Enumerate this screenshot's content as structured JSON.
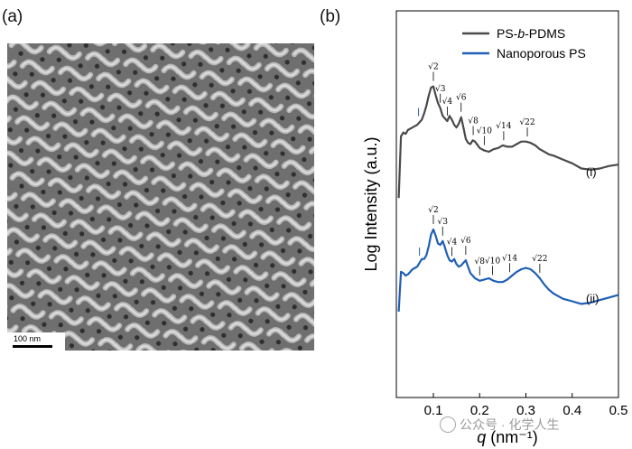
{
  "panels": {
    "a_label": "(a)",
    "b_label": "(b)"
  },
  "micrograph": {
    "scale_bar_label": "100 nm"
  },
  "chart_data": {
    "type": "line",
    "xlabel_symbol": "q",
    "xlabel_unit": "(nm⁻¹)",
    "ylabel": "Log Intensity (a.u.)",
    "xlim": [
      0.02,
      0.5
    ],
    "xticks": [
      "0.1",
      "0.2",
      "0.3",
      "0.4",
      "0.5"
    ],
    "xtick_values": [
      0.1,
      0.2,
      0.3,
      0.4,
      0.5
    ],
    "y_ticks_labeled": false,
    "legend_position": "top-right",
    "series": [
      {
        "name": "PS-b-PDMS",
        "label_plain": "PS-",
        "label_italic": "b",
        "label_rest": "-PDMS",
        "curve_tag": "(i)",
        "color": "#4a4a4a",
        "x": [
          0.025,
          0.03,
          0.035,
          0.04,
          0.045,
          0.05,
          0.055,
          0.06,
          0.065,
          0.07,
          0.075,
          0.08,
          0.085,
          0.09,
          0.095,
          0.1,
          0.105,
          0.11,
          0.115,
          0.12,
          0.125,
          0.13,
          0.135,
          0.14,
          0.145,
          0.15,
          0.155,
          0.16,
          0.165,
          0.17,
          0.175,
          0.18,
          0.185,
          0.19,
          0.2,
          0.21,
          0.22,
          0.23,
          0.24,
          0.25,
          0.26,
          0.27,
          0.28,
          0.29,
          0.3,
          0.31,
          0.32,
          0.33,
          0.34,
          0.35,
          0.36,
          0.38,
          0.4,
          0.42,
          0.44,
          0.46,
          0.48,
          0.5
        ],
        "y": [
          0.2,
          5.0,
          5.3,
          5.2,
          5.5,
          5.6,
          5.7,
          5.8,
          5.9,
          6.1,
          6.3,
          6.8,
          7.4,
          8.2,
          8.8,
          8.9,
          8.2,
          7.6,
          7.2,
          6.6,
          6.4,
          6.2,
          6.6,
          6.3,
          5.9,
          5.7,
          6.0,
          6.5,
          5.7,
          4.8,
          4.5,
          4.4,
          4.7,
          4.6,
          4.1,
          3.9,
          3.8,
          4.0,
          4.1,
          4.3,
          4.2,
          4.2,
          4.4,
          4.6,
          4.6,
          4.5,
          4.3,
          4.0,
          3.8,
          3.6,
          3.5,
          3.2,
          2.9,
          2.5,
          2.4,
          2.5,
          2.7,
          2.8
        ]
      },
      {
        "name": "Nanoporous PS",
        "curve_tag": "(ii)",
        "color": "#1f5fb5",
        "x": [
          0.025,
          0.03,
          0.035,
          0.04,
          0.045,
          0.05,
          0.055,
          0.06,
          0.065,
          0.07,
          0.075,
          0.08,
          0.085,
          0.09,
          0.095,
          0.1,
          0.105,
          0.11,
          0.115,
          0.12,
          0.125,
          0.13,
          0.135,
          0.14,
          0.145,
          0.15,
          0.155,
          0.16,
          0.165,
          0.17,
          0.175,
          0.18,
          0.19,
          0.2,
          0.21,
          0.22,
          0.23,
          0.24,
          0.25,
          0.26,
          0.27,
          0.28,
          0.29,
          0.3,
          0.31,
          0.32,
          0.33,
          0.34,
          0.35,
          0.36,
          0.38,
          0.4,
          0.42,
          0.44,
          0.46,
          0.48,
          0.5
        ],
        "y": [
          0.5,
          3.6,
          3.5,
          3.3,
          3.4,
          3.6,
          3.8,
          3.9,
          4.0,
          4.3,
          4.6,
          4.6,
          4.9,
          5.6,
          6.5,
          6.9,
          6.4,
          5.8,
          5.7,
          6.0,
          5.5,
          4.9,
          4.5,
          4.4,
          4.6,
          4.2,
          4.0,
          4.1,
          4.3,
          4.5,
          4.0,
          3.5,
          3.1,
          2.9,
          3.0,
          3.1,
          2.9,
          2.8,
          2.8,
          3.0,
          3.3,
          3.6,
          3.8,
          3.9,
          3.8,
          3.5,
          3.1,
          2.6,
          2.2,
          1.9,
          1.5,
          1.3,
          1.1,
          1.2,
          1.4,
          1.6,
          1.8
        ]
      }
    ],
    "curve_labels_position": "right of each curve",
    "peak_labels": [
      {
        "series": 0,
        "label": "√2",
        "x": 0.1
      },
      {
        "series": 0,
        "label": "√3",
        "x": 0.115
      },
      {
        "series": 0,
        "label": "√4",
        "x": 0.13
      },
      {
        "series": 0,
        "label": "√6",
        "x": 0.16
      },
      {
        "series": 0,
        "label": "√8",
        "x": 0.186
      },
      {
        "series": 0,
        "label": "√10",
        "x": 0.21
      },
      {
        "series": 0,
        "label": "√14",
        "x": 0.252
      },
      {
        "series": 0,
        "label": "√22",
        "x": 0.303
      },
      {
        "series": 1,
        "label": "√2",
        "x": 0.1
      },
      {
        "series": 1,
        "label": "√3",
        "x": 0.12
      },
      {
        "series": 1,
        "label": "√4",
        "x": 0.14
      },
      {
        "series": 1,
        "label": "√6",
        "x": 0.17
      },
      {
        "series": 1,
        "label": "√8",
        "x": 0.2
      },
      {
        "series": 1,
        "label": "√10",
        "x": 0.228
      },
      {
        "series": 1,
        "label": "√14",
        "x": 0.265
      },
      {
        "series": 1,
        "label": "√22",
        "x": 0.33
      }
    ],
    "blue_markers": [
      {
        "series": 0,
        "x": 0.068
      },
      {
        "series": 1,
        "x": 0.07
      }
    ]
  },
  "watermark": {
    "text": "公众号 · 化学人生",
    "color": "#9a9a9a"
  }
}
